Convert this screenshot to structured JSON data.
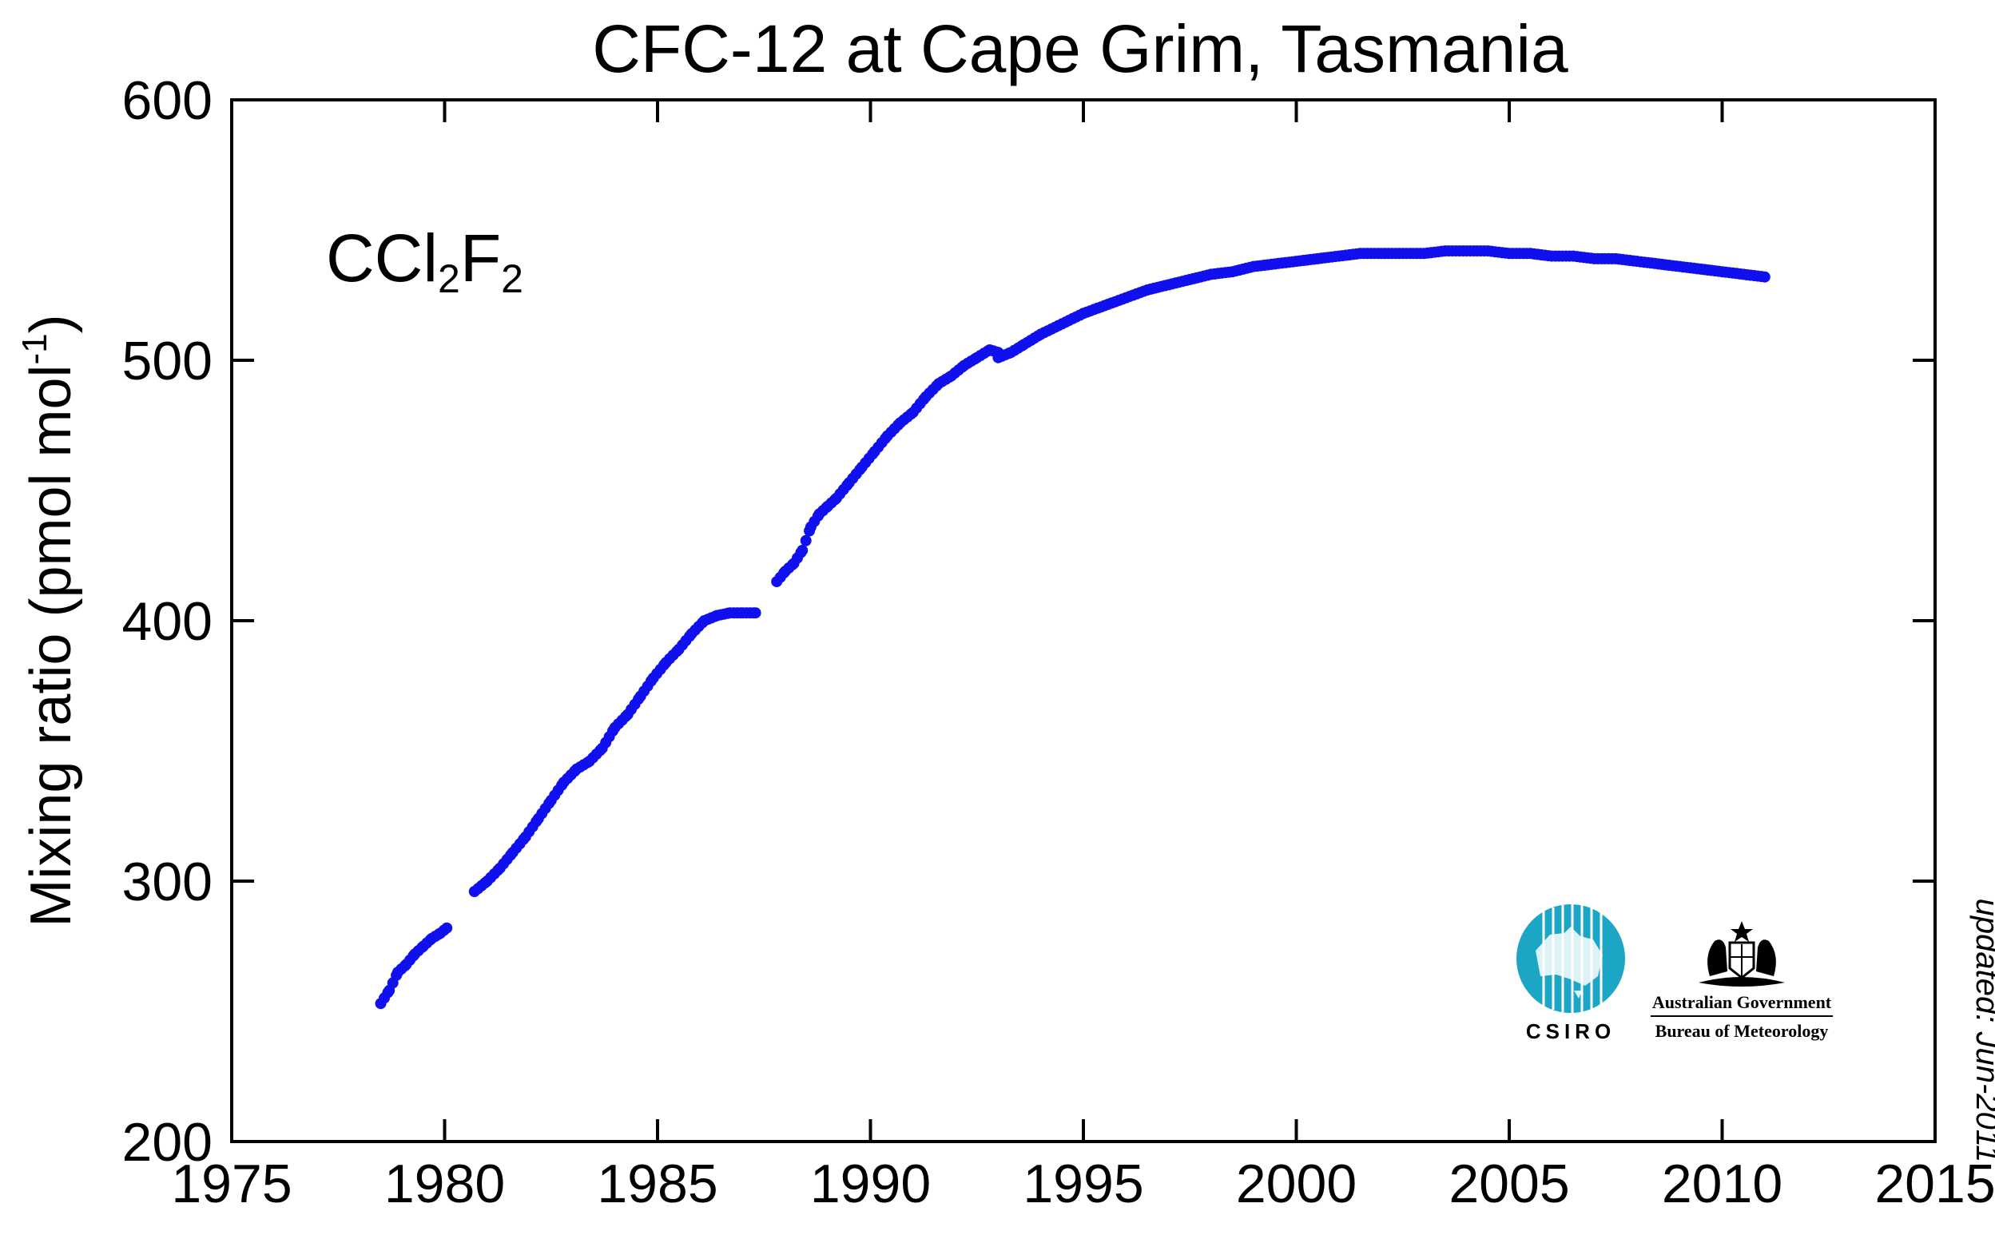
{
  "chart_data": {
    "type": "scatter",
    "title": "CFC-12 at Cape Grim, Tasmania",
    "xlabel": "",
    "ylabel": "Mixing ratio (pmol mol",
    "ylabel_sup": "-1",
    "ylabel_close": ")",
    "xlim": [
      1975,
      2015
    ],
    "ylim": [
      200,
      600
    ],
    "xticks": [
      1975,
      1980,
      1985,
      1990,
      1995,
      2000,
      2005,
      2010,
      2015
    ],
    "yticks": [
      200,
      300,
      400,
      500,
      600
    ],
    "grid": false,
    "marker_color": "#1010ee",
    "annotation": {
      "formula_part1": "CCl",
      "formula_sub1": "2",
      "formula_part2": "F",
      "formula_sub2": "2"
    },
    "updated_note": "updated:  Jun-2011",
    "logos": {
      "csiro": "CSIRO",
      "gov_line1": "Australian Government",
      "gov_line2": "Bureau of Meteorology"
    },
    "series": [
      {
        "name": "CCl2F2",
        "segments": [
          {
            "x": [
              1978.5,
              1978.7,
              1978.9,
              1979.1,
              1979.3,
              1979.5,
              1979.7,
              1979.9,
              1980.05
            ],
            "y": [
              253,
              258,
              265,
              268,
              272,
              275,
              278,
              280,
              282
            ]
          },
          {
            "x": [
              1980.7,
              1981.0,
              1981.3,
              1981.6,
              1981.9,
              1982.2,
              1982.5,
              1982.8,
              1983.1,
              1983.4,
              1983.7,
              1984.0,
              1984.3,
              1984.6,
              1984.9,
              1985.2,
              1985.5,
              1985.8,
              1986.1,
              1986.4,
              1986.7,
              1987.0,
              1987.3
            ],
            "y": [
              296,
              300,
              305,
              311,
              317,
              324,
              331,
              338,
              343,
              346,
              351,
              359,
              364,
              371,
              378,
              384,
              389,
              395,
              400,
              402,
              403,
              403,
              403
            ]
          },
          {
            "x": [
              1987.8,
              1988.0,
              1988.2,
              1988.4,
              1988.6,
              1988.8,
              1989.0,
              1989.2,
              1989.5,
              1989.8,
              1990.1,
              1990.4,
              1990.7,
              1991.0,
              1991.3,
              1991.6,
              1991.9,
              1992.2,
              1992.5,
              1992.8,
              1993.0
            ],
            "y": [
              415,
              419,
              422,
              427,
              436,
              441,
              444,
              447,
              453,
              459,
              465,
              471,
              476,
              480,
              486,
              491,
              494,
              498,
              501,
              504,
              503
            ]
          },
          {
            "x": [
              1993.0,
              1993.3,
              1993.6,
              1994.0,
              1994.5,
              1995.0,
              1995.5,
              1996.0,
              1996.5,
              1997.0,
              1997.5,
              1998.0,
              1998.5,
              1999.0,
              1999.5,
              2000.0,
              2000.5,
              2001.0,
              2001.5,
              2002.0,
              2002.5,
              2003.0,
              2003.5,
              2004.0,
              2004.5,
              2005.0,
              2005.5,
              2006.0,
              2006.5,
              2007.0,
              2007.5,
              2008.0,
              2008.5,
              2009.0,
              2009.5,
              2010.0,
              2010.5,
              2011.0
            ],
            "y": [
              501,
              503,
              506,
              510,
              514,
              518,
              521,
              524,
              527,
              529,
              531,
              533,
              534,
              536,
              537,
              538,
              539,
              540,
              541,
              541,
              541,
              541,
              542,
              542,
              542,
              541,
              541,
              540,
              540,
              539,
              539,
              538,
              537,
              536,
              535,
              534,
              533,
              532
            ]
          }
        ]
      }
    ]
  }
}
